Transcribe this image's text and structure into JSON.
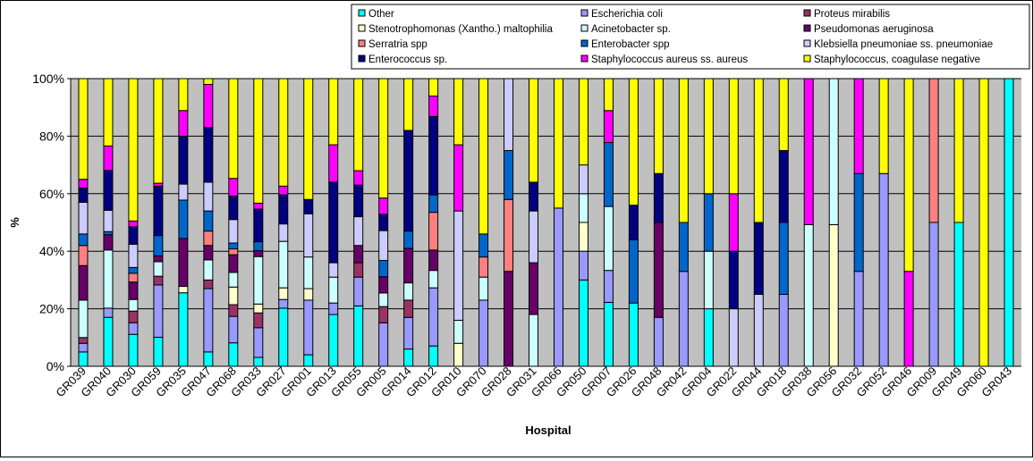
{
  "colors": {
    "plot_background": "#c0c0c0",
    "gridline": "#000000"
  },
  "series_colors": {
    "other": "#00ffff",
    "escherichia_coli": "#9999ff",
    "proteus_mirabilis": "#993366",
    "stenotrophomonas": "#ffffcc",
    "acinetobacter": "#ccffff",
    "pseudomonas": "#660066",
    "serratria": "#ff8080",
    "enterobacter": "#0066cc",
    "klebsiella": "#ccccff",
    "enterococcus": "#000080",
    "staph_aureus": "#ff00ff",
    "staph_coag_neg": "#ffff00"
  },
  "chart_data": {
    "type": "bar",
    "stacked": true,
    "percent_stacked": true,
    "xlabel": "Hospital",
    "ylabel": "%",
    "ylim": [
      0,
      100
    ],
    "yticks": [
      "0%",
      "20%",
      "40%",
      "60%",
      "80%",
      "100%"
    ],
    "grid": true,
    "legend_position": "top-right",
    "legend_order": [
      "Other",
      "Escherichia coli",
      "Proteus mirabilis",
      "Stenotrophomonas (Xantho.) maltophilia",
      "Acinetobacter sp.",
      "Pseudomonas aeruginosa",
      "Serratria spp",
      "Enterobacter spp",
      "Klebsiella pneumoniae ss. pneumoniae",
      "Enterococcus sp.",
      "Staphylococcus aureus ss. aureus",
      "Staphylococcus, coagulase negative"
    ],
    "categories": [
      "GR039",
      "GR040",
      "GR030",
      "GR059",
      "GR035",
      "GR047",
      "GR068",
      "GR033",
      "GR027",
      "GR001",
      "GR013",
      "GR055",
      "GR005",
      "GR014",
      "GR012",
      "GR010",
      "GR070",
      "GR028",
      "GR031",
      "GR066",
      "GR050",
      "GR007",
      "GR026",
      "GR048",
      "GR042",
      "GR004",
      "GR022",
      "GR044",
      "GR018",
      "GR038",
      "GR056",
      "GR032",
      "GR052",
      "GR046",
      "GR009",
      "GR049",
      "GR060",
      "GR043"
    ],
    "series": [
      {
        "name": "Other",
        "key": "other",
        "values": [
          5,
          16,
          11,
          10,
          23,
          5,
          8,
          3,
          20,
          4,
          18,
          21,
          0,
          6,
          7,
          0,
          0,
          0,
          0,
          0,
          30,
          22,
          22,
          0,
          0,
          20,
          0,
          0,
          0,
          0,
          0,
          0,
          0,
          0,
          0,
          50,
          0,
          100
        ]
      },
      {
        "name": "Escherichia coli",
        "key": "escherichia_coli",
        "values": [
          3,
          3,
          4,
          18,
          0,
          22,
          9,
          10,
          3,
          19,
          4,
          10,
          16,
          11,
          20,
          0,
          23,
          0,
          0,
          55,
          10,
          11,
          0,
          17,
          33,
          0,
          0,
          0,
          25,
          0,
          0,
          33,
          67,
          0,
          50,
          0,
          0,
          0
        ]
      },
      {
        "name": "Proteus mirabilis",
        "key": "proteus_mirabilis",
        "values": [
          2,
          0,
          4,
          3,
          0,
          3,
          4,
          5,
          0,
          0,
          0,
          5,
          6,
          6,
          0,
          0,
          0,
          0,
          0,
          0,
          0,
          0,
          0,
          0,
          0,
          0,
          0,
          0,
          0,
          0,
          0,
          0,
          0,
          0,
          0,
          0,
          0,
          0
        ]
      },
      {
        "name": "Stenotrophomonas (Xantho.) maltophilia",
        "key": "stenotrophomonas",
        "values": [
          0,
          0,
          0,
          0,
          2,
          0,
          6,
          3,
          4,
          4,
          0,
          0,
          0,
          0,
          0,
          8,
          0,
          0,
          0,
          0,
          10,
          0,
          0,
          0,
          0,
          0,
          0,
          0,
          0,
          0,
          33,
          0,
          0,
          0,
          0,
          0,
          0,
          0
        ]
      },
      {
        "name": "Acinetobacter sp.",
        "key": "acinetobacter",
        "values": [
          13,
          19,
          4,
          5,
          0,
          7,
          5,
          16,
          16,
          11,
          9,
          0,
          5,
          6,
          6,
          8,
          8,
          0,
          18,
          0,
          10,
          22,
          0,
          0,
          0,
          20,
          0,
          0,
          0,
          33,
          34,
          0,
          0,
          0,
          0,
          0,
          0,
          0
        ]
      },
      {
        "name": "Pseudomonas aeruginosa",
        "key": "pseudomonas",
        "values": [
          12,
          5,
          6,
          2,
          15,
          5,
          6,
          2,
          0,
          0,
          0,
          6,
          6,
          12,
          7,
          0,
          0,
          33,
          18,
          0,
          0,
          0,
          0,
          33,
          0,
          0,
          0,
          0,
          0,
          0,
          0,
          0,
          0,
          0,
          0,
          0,
          0,
          0
        ]
      },
      {
        "name": "Serratria spp",
        "key": "serratria",
        "values": [
          7,
          0,
          3,
          0,
          0,
          5,
          2,
          0,
          0,
          0,
          0,
          0,
          0,
          0,
          13,
          0,
          7,
          25,
          0,
          0,
          0,
          0,
          0,
          0,
          0,
          0,
          0,
          0,
          0,
          0,
          0,
          0,
          0,
          0,
          50,
          0,
          0,
          0
        ]
      },
      {
        "name": "Enterobacter spp",
        "key": "enterobacter",
        "values": [
          4,
          1,
          2,
          7,
          12,
          7,
          2,
          3,
          0,
          0,
          0,
          0,
          6,
          6,
          6,
          0,
          8,
          17,
          0,
          0,
          0,
          22,
          22,
          0,
          17,
          20,
          0,
          0,
          25,
          0,
          0,
          34,
          0,
          0,
          0,
          0,
          0,
          0
        ]
      },
      {
        "name": "Klebsiella pneumoniae ss. pneumoniae",
        "key": "klebsiella",
        "values": [
          11,
          7,
          8,
          0,
          5,
          10,
          8,
          0,
          6,
          15,
          5,
          10,
          11,
          0,
          0,
          38,
          0,
          25,
          18,
          0,
          10,
          0,
          0,
          0,
          0,
          0,
          20,
          25,
          0,
          0,
          0,
          0,
          0,
          0,
          0,
          0,
          0,
          0
        ]
      },
      {
        "name": "Enterococcus sp.",
        "key": "enterococcus",
        "values": [
          5,
          13,
          6,
          17,
          15,
          19,
          8,
          11,
          10,
          5,
          28,
          11,
          6,
          35,
          27,
          0,
          0,
          0,
          10,
          0,
          0,
          0,
          12,
          17,
          0,
          0,
          20,
          25,
          25,
          0,
          0,
          0,
          0,
          0,
          0,
          0,
          0,
          0
        ]
      },
      {
        "name": "Staphylococcus aureus ss. aureus",
        "key": "staph_aureus",
        "values": [
          3,
          8,
          2,
          1,
          8,
          15,
          6,
          2,
          3,
          0,
          13,
          5,
          6,
          0,
          7,
          23,
          0,
          0,
          0,
          0,
          0,
          11,
          0,
          0,
          0,
          0,
          20,
          0,
          0,
          34,
          0,
          33,
          0,
          33,
          0,
          0,
          0,
          0
        ]
      },
      {
        "name": "Staphylococcus, coagulase negative",
        "key": "staph_coag_neg",
        "values": [
          35,
          22,
          49,
          36,
          10,
          2,
          34,
          42,
          37,
          42,
          23,
          32,
          44,
          18,
          6,
          23,
          54,
          0,
          36,
          45,
          30,
          11,
          44,
          33,
          50,
          40,
          40,
          50,
          25,
          0,
          0,
          0,
          33,
          67,
          0,
          50,
          100,
          0
        ]
      }
    ]
  }
}
